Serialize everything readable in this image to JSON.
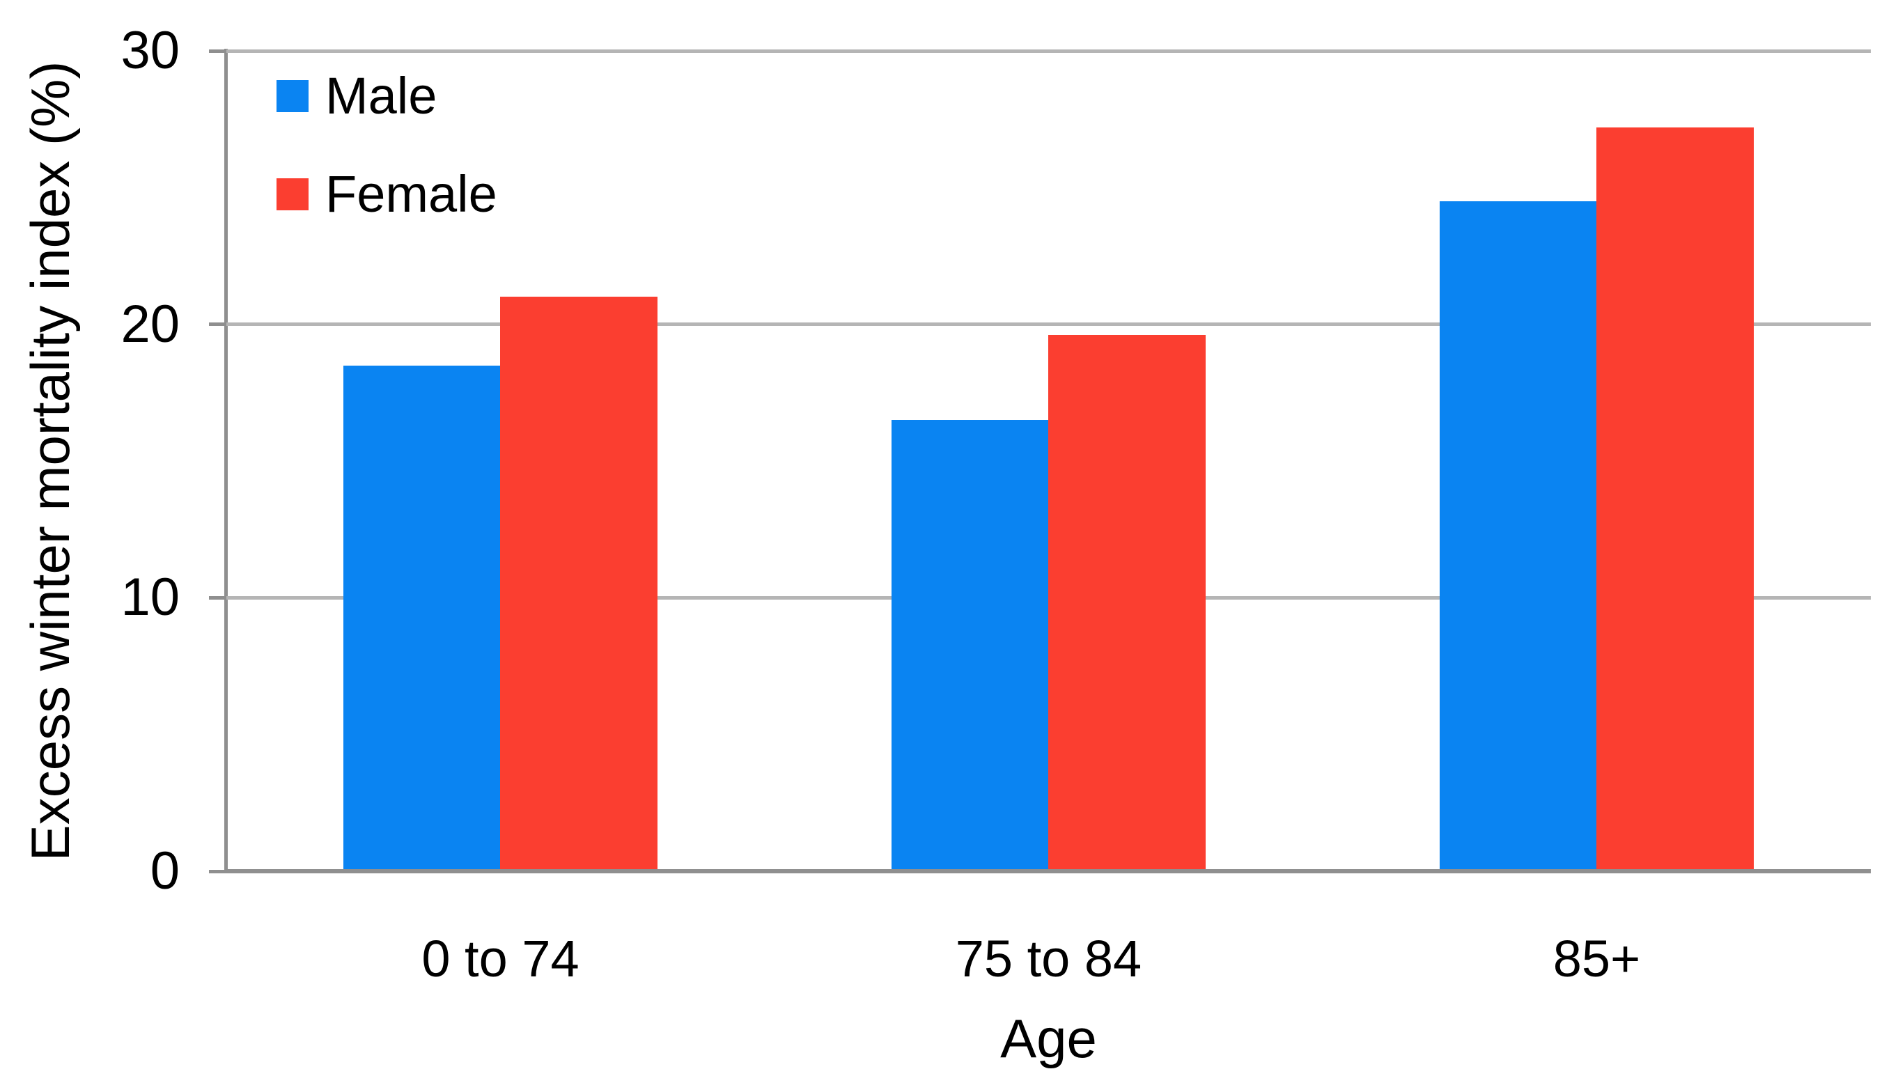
{
  "chart_data": {
    "type": "bar",
    "title": "",
    "xlabel": "Age",
    "ylabel": "Excess winter mortality index (%)",
    "categories": [
      "0 to 74",
      "75 to 84",
      "85+"
    ],
    "series": [
      {
        "name": "Male",
        "color": "#0A84F2",
        "values": [
          18.5,
          16.5,
          24.5
        ]
      },
      {
        "name": "Female",
        "color": "#FB3E30",
        "values": [
          21.0,
          19.6,
          27.2
        ]
      }
    ],
    "ylim": [
      0,
      30
    ],
    "yticks": [
      30,
      20,
      10,
      0
    ],
    "grid": "horizontal",
    "gridline_color": "#b5b5b5",
    "axis_color": "#8f8f8f",
    "legend_position": "top-left-inside",
    "background": "#ffffff"
  }
}
